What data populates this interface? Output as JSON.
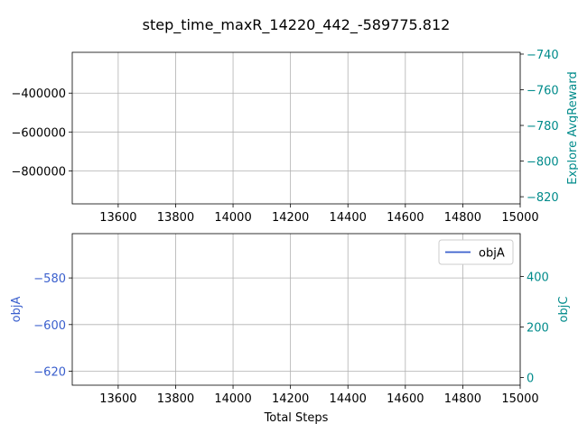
{
  "chart_data": {
    "title": "step_time_maxR_14220_442_-589775.812",
    "xlabel": "Total Steps",
    "x_ticks": [
      13600,
      13800,
      14000,
      14200,
      14400,
      14600,
      14800,
      15000
    ],
    "xlim": [
      13440,
      15000
    ],
    "grid": true,
    "colors": {
      "left": "#3a5fcd",
      "right": "#008b8b",
      "axis": "#000000",
      "grid": "#b0b0b0"
    },
    "subplots": [
      {
        "type": "line",
        "left": {
          "ylabel": "",
          "ylim": [
            -970000,
            -190000
          ],
          "ticks": [
            -400000,
            -600000,
            -800000
          ],
          "labels": [
            "−400000",
            "−600000",
            "−800000"
          ]
        },
        "right": {
          "ylabel": "Explore AvgReward",
          "ylim": [
            -824,
            -739
          ],
          "ticks": [
            -740,
            -760,
            -780,
            -800,
            -820
          ],
          "labels": [
            "−740",
            "−760",
            "−780",
            "−800",
            "−820"
          ]
        },
        "series": []
      },
      {
        "type": "line",
        "left": {
          "ylabel": "objA",
          "ylim": [
            -626,
            -561
          ],
          "ticks": [
            -580,
            -600,
            -620
          ],
          "labels": [
            "−580",
            "−600",
            "−620"
          ]
        },
        "right": {
          "ylabel": "objC",
          "ylim": [
            -30,
            570
          ],
          "ticks": [
            400,
            200,
            0
          ],
          "labels": [
            "400",
            "200",
            "0"
          ]
        },
        "series": [
          {
            "name": "objA",
            "values": []
          }
        ],
        "legend": {
          "placement": "top-right",
          "entries": [
            "objA"
          ]
        }
      }
    ]
  }
}
